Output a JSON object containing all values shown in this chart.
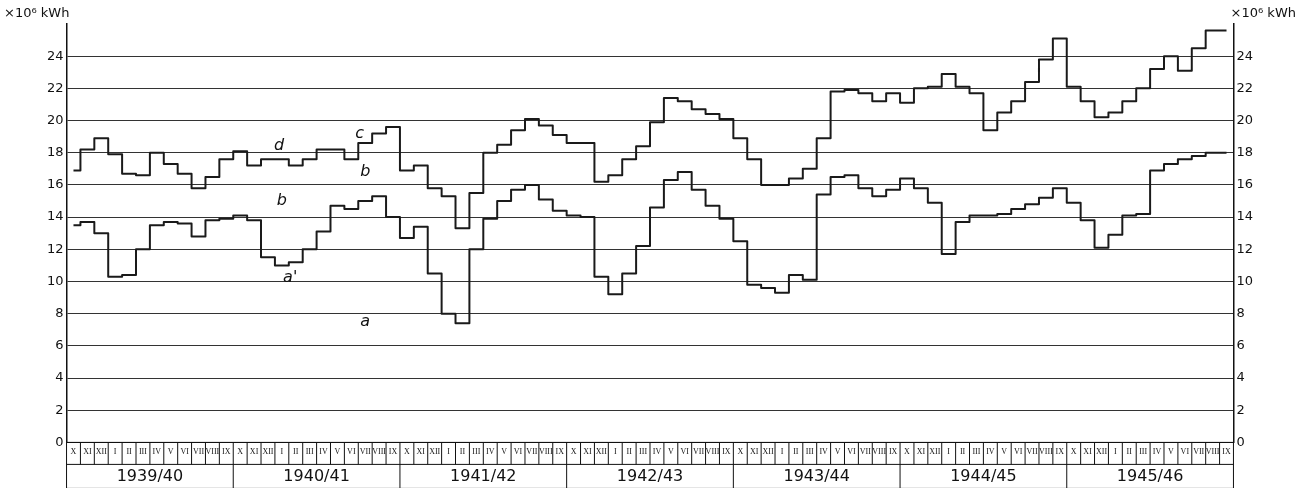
{
  "chart_data": {
    "type": "step",
    "categories": [
      "X",
      "XI",
      "XII",
      "I",
      "II",
      "III",
      "IV",
      "V",
      "VI",
      "VII",
      "VIII",
      "IX",
      "X",
      "XI",
      "XII",
      "I",
      "II",
      "III",
      "IV",
      "V",
      "VI",
      "VII",
      "VIII",
      "IX",
      "X",
      "XI",
      "XII",
      "I",
      "II",
      "III",
      "IV",
      "V",
      "VI",
      "VII",
      "VIII",
      "IX",
      "X",
      "XI",
      "XII",
      "I",
      "II",
      "III",
      "IV",
      "V",
      "VI",
      "VII",
      "VIII",
      "IX",
      "X",
      "XI",
      "XII",
      "I",
      "II",
      "III",
      "IV",
      "V",
      "VI",
      "VII",
      "VIII",
      "IX",
      "X",
      "XI",
      "XII",
      "I",
      "II",
      "III",
      "IV",
      "V",
      "VI",
      "VII",
      "VIII",
      "IX",
      "X",
      "XI",
      "XII",
      "I",
      "II",
      "III",
      "IV",
      "V",
      "VI",
      "VII",
      "VIII",
      "IX"
    ],
    "series": [
      {
        "color": "#1a1a1a",
        "values": [
          16.9,
          18.2,
          18.9,
          17.9,
          16.7,
          16.6,
          18.0,
          17.3,
          16.7,
          15.8,
          16.5,
          17.6,
          18.1,
          17.2,
          17.6,
          17.6,
          17.2,
          17.6,
          18.2,
          18.2,
          17.6,
          18.6,
          19.2,
          19.6,
          16.9,
          17.2,
          15.8,
          15.3,
          13.3,
          15.5,
          18.0,
          18.5,
          19.4,
          20.1,
          19.7,
          19.1,
          18.6,
          18.6,
          16.2,
          16.6,
          17.6,
          18.4,
          19.9,
          21.4,
          21.2,
          20.7,
          20.4,
          20.1,
          18.9,
          17.6,
          16.0,
          16.0,
          16.4,
          17.0,
          18.9,
          21.8,
          21.9,
          21.7,
          21.2,
          21.7,
          21.1,
          22.0,
          22.1,
          22.9,
          22.1,
          21.7,
          19.4,
          20.5,
          21.2,
          22.4,
          23.8,
          25.1,
          22.1,
          21.2,
          20.2,
          20.5,
          21.2,
          22.0,
          23.2,
          24.0,
          23.1,
          24.5,
          25.6,
          25.6
        ]
      },
      {
        "color": "#1a1a1a",
        "values": [
          13.5,
          13.7,
          13.0,
          10.3,
          10.4,
          12.0,
          13.5,
          13.7,
          13.6,
          12.8,
          13.8,
          13.9,
          14.1,
          13.8,
          11.5,
          11.0,
          11.2,
          12.0,
          13.1,
          14.7,
          14.5,
          15.0,
          15.3,
          14.0,
          12.7,
          13.4,
          10.5,
          8.0,
          7.4,
          12.0,
          13.9,
          15.0,
          15.7,
          16.0,
          15.1,
          14.4,
          14.1,
          14.0,
          10.3,
          9.2,
          10.5,
          12.2,
          14.6,
          16.3,
          16.8,
          15.7,
          14.7,
          13.9,
          12.5,
          9.8,
          9.6,
          9.3,
          10.4,
          10.1,
          15.4,
          16.5,
          16.6,
          15.8,
          15.3,
          15.7,
          16.4,
          15.8,
          14.9,
          11.7,
          13.7,
          14.1,
          14.1,
          14.2,
          14.5,
          14.8,
          15.2,
          15.8,
          14.9,
          13.8,
          12.1,
          12.9,
          14.1,
          14.2,
          16.9,
          17.3,
          17.6,
          17.8,
          18.0,
          18.0
        ]
      }
    ],
    "ylabel": "×10⁶ kWh",
    "y2label": "×10⁶ kWh",
    "ylim": [
      0,
      26
    ],
    "yticks": [
      0,
      2,
      4,
      6,
      8,
      10,
      12,
      14,
      16,
      18,
      20,
      22,
      24
    ],
    "y2lim": [
      0,
      26
    ],
    "y2ticks": [
      0,
      2,
      4,
      6,
      8,
      10,
      12,
      14,
      16,
      18,
      20,
      22,
      24
    ],
    "grid": "y",
    "legend": false,
    "line_style": "solid",
    "marker": "none",
    "annotations": [
      "1939/40",
      "1940/41",
      "1941/42",
      "1942/43",
      "1943/44",
      "1944/45",
      "1945/46",
      "a",
      "b",
      "b",
      "c",
      "d",
      "a'"
    ]
  }
}
